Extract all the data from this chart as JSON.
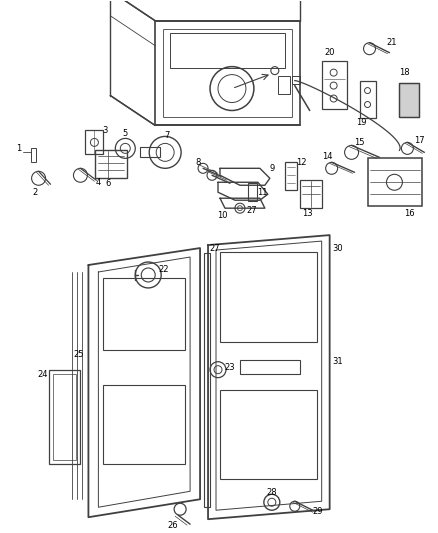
{
  "background_color": "#ffffff",
  "line_color": "#404040",
  "label_color": "#000000",
  "fig_width": 4.38,
  "fig_height": 5.33,
  "dpi": 100
}
